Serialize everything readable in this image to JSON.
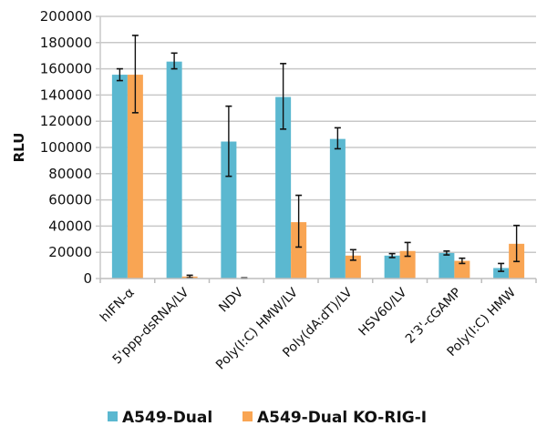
{
  "chart_data": {
    "type": "bar",
    "title": "",
    "xlabel": "",
    "ylabel": "RLU",
    "ylim": [
      0,
      200000
    ],
    "yticks": [
      "0",
      "20000",
      "40000",
      "60000",
      "80000",
      "100000",
      "120000",
      "140000",
      "160000",
      "180000",
      "200000"
    ],
    "ytick_values": [
      0,
      20000,
      40000,
      60000,
      80000,
      100000,
      120000,
      140000,
      160000,
      180000,
      200000
    ],
    "grid": true,
    "legend_position": "bottom",
    "categories": [
      "hIFN-α",
      "5'ppp-dsRNA/LV",
      "NDV",
      "Poly(I:C) HMW/LV",
      "Poly(dA:dT)/LV",
      "HSV60/LV",
      "2'3'-cGAMP",
      "Poly(I:C) HMW"
    ],
    "series": [
      {
        "name": "A549-Dual",
        "color": "#5bb8d0",
        "values": [
          155500,
          165500,
          104500,
          138500,
          106500,
          17500,
          19500,
          8000
        ],
        "err_high": [
          160000,
          172000,
          131500,
          164000,
          115000,
          19000,
          21000,
          11500
        ],
        "err_low": [
          151000,
          160000,
          78000,
          114000,
          99000,
          16000,
          18000,
          5500
        ]
      },
      {
        "name": "A549-Dual KO-RIG-I",
        "color": "#f9a553",
        "values": [
          155500,
          1500,
          300,
          43000,
          17500,
          21000,
          13500,
          26500
        ],
        "err_high": [
          185500,
          2500,
          500,
          63500,
          22000,
          27500,
          15500,
          40500
        ],
        "err_low": [
          126500,
          500,
          100,
          24000,
          14000,
          17000,
          11500,
          13000
        ]
      }
    ]
  }
}
